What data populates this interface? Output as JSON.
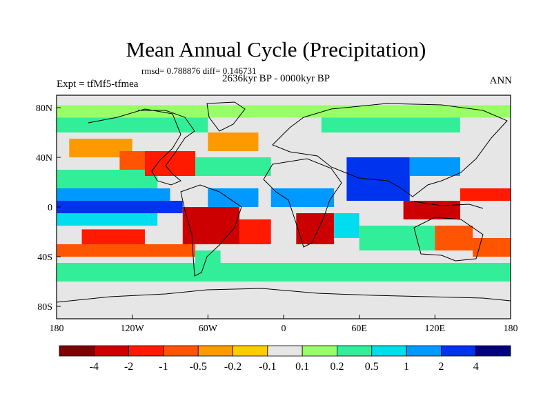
{
  "chart_data": {
    "type": "heatmap",
    "title": "Mean Annual Cycle (Precipitation)",
    "stats": "rmsd= 0.788876 diff= 0.146731",
    "period": "2636kyr BP - 0000kyr BP",
    "experiment": "Expt = tfMf5-tfmea",
    "season": "ANN",
    "xlim": [
      -180,
      180
    ],
    "ylim": [
      -90,
      90
    ],
    "x_ticks": [
      {
        "value": -180,
        "label": "180"
      },
      {
        "value": -120,
        "label": "120W"
      },
      {
        "value": -60,
        "label": "60W"
      },
      {
        "value": 0,
        "label": "0"
      },
      {
        "value": 60,
        "label": "60E"
      },
      {
        "value": 120,
        "label": "120E"
      },
      {
        "value": 180,
        "label": "180"
      }
    ],
    "y_ticks": [
      {
        "value": 80,
        "label": "80N"
      },
      {
        "value": 40,
        "label": "40N"
      },
      {
        "value": 0,
        "label": "0"
      },
      {
        "value": -40,
        "label": "40S"
      },
      {
        "value": -80,
        "label": "80S"
      }
    ],
    "colorbar": {
      "colors": [
        "#7f0000",
        "#cc0000",
        "#ff1a00",
        "#ff5500",
        "#ff9900",
        "#ffcc00",
        "#e6e6e6",
        "#99ff66",
        "#33ee99",
        "#00ddee",
        "#0099ff",
        "#0033ee",
        "#000080"
      ],
      "labels": [
        "-4",
        "-2",
        "-1",
        "-0.5",
        "-0.2",
        "-0.1",
        "0.1",
        "0.2",
        "0.5",
        "1",
        "2",
        "4"
      ]
    },
    "regions": [
      {
        "lon": [
          -180,
          180
        ],
        "lat": [
          -90,
          90
        ],
        "bin": 6
      },
      {
        "lon": [
          -180,
          180
        ],
        "lat": [
          72,
          82
        ],
        "bin": 7
      },
      {
        "lon": [
          -180,
          -60
        ],
        "lat": [
          60,
          72
        ],
        "bin": 8
      },
      {
        "lon": [
          -170,
          -120
        ],
        "lat": [
          40,
          55
        ],
        "bin": 4
      },
      {
        "lon": [
          -130,
          -100
        ],
        "lat": [
          25,
          45
        ],
        "bin": 3
      },
      {
        "lon": [
          -180,
          -100
        ],
        "lat": [
          15,
          30
        ],
        "bin": 8
      },
      {
        "lon": [
          -180,
          -90
        ],
        "lat": [
          5,
          15
        ],
        "bin": 10
      },
      {
        "lon": [
          -180,
          -80
        ],
        "lat": [
          -5,
          5
        ],
        "bin": 11
      },
      {
        "lon": [
          -180,
          -100
        ],
        "lat": [
          -15,
          -5
        ],
        "bin": 9
      },
      {
        "lon": [
          -160,
          -110
        ],
        "lat": [
          -30,
          -18
        ],
        "bin": 2
      },
      {
        "lon": [
          -180,
          -70
        ],
        "lat": [
          -40,
          -30
        ],
        "bin": 3
      },
      {
        "lon": [
          -110,
          -70
        ],
        "lat": [
          25,
          45
        ],
        "bin": 2
      },
      {
        "lon": [
          -70,
          -10
        ],
        "lat": [
          25,
          40
        ],
        "bin": 8
      },
      {
        "lon": [
          -60,
          -20
        ],
        "lat": [
          45,
          60
        ],
        "bin": 4
      },
      {
        "lon": [
          -60,
          -20
        ],
        "lat": [
          0,
          15
        ],
        "bin": 10
      },
      {
        "lon": [
          -80,
          -35
        ],
        "lat": [
          -30,
          0
        ],
        "bin": 1
      },
      {
        "lon": [
          -35,
          -10
        ],
        "lat": [
          -30,
          -10
        ],
        "bin": 2
      },
      {
        "lon": [
          -70,
          -50
        ],
        "lat": [
          -55,
          -35
        ],
        "bin": 8
      },
      {
        "lon": [
          -10,
          40
        ],
        "lat": [
          0,
          15
        ],
        "bin": 10
      },
      {
        "lon": [
          10,
          40
        ],
        "lat": [
          -30,
          -5
        ],
        "bin": 1
      },
      {
        "lon": [
          40,
          60
        ],
        "lat": [
          -25,
          -5
        ],
        "bin": 9
      },
      {
        "lon": [
          50,
          100
        ],
        "lat": [
          5,
          40
        ],
        "bin": 11
      },
      {
        "lon": [
          100,
          140
        ],
        "lat": [
          25,
          40
        ],
        "bin": 10
      },
      {
        "lon": [
          95,
          140
        ],
        "lat": [
          -10,
          5
        ],
        "bin": 1
      },
      {
        "lon": [
          140,
          180
        ],
        "lat": [
          5,
          15
        ],
        "bin": 2
      },
      {
        "lon": [
          115,
          150
        ],
        "lat": [
          -35,
          -15
        ],
        "bin": 3
      },
      {
        "lon": [
          150,
          180
        ],
        "lat": [
          -40,
          -25
        ],
        "bin": 3
      },
      {
        "lon": [
          60,
          120
        ],
        "lat": [
          -35,
          -15
        ],
        "bin": 8
      },
      {
        "lon": [
          30,
          140
        ],
        "lat": [
          60,
          72
        ],
        "bin": 8
      },
      {
        "lon": [
          -180,
          180
        ],
        "lat": [
          -60,
          -45
        ],
        "bin": 8
      }
    ]
  }
}
